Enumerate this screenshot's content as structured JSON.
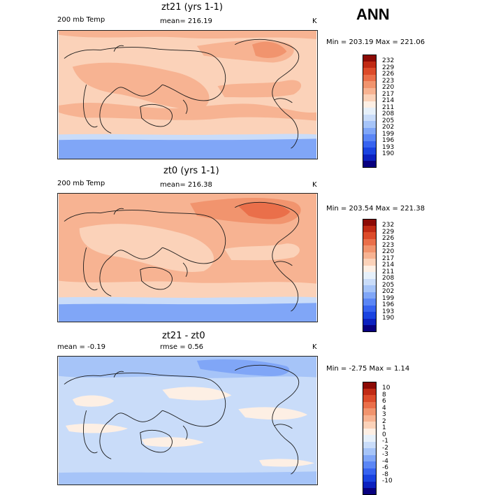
{
  "header": {
    "ann_label": "ANN"
  },
  "panels": [
    {
      "title": "zt21 (yrs 1-1)",
      "left_label": "200 mb Temp",
      "mean_label": "mean= 216.19",
      "unit": "K",
      "minmax": "Min = 203.19 Max = 221.06",
      "colors": [
        "#08007f",
        "#0c21bf",
        "#1a43e0",
        "#3763ef",
        "#5b86f5",
        "#80a6f7",
        "#a6c4f8",
        "#c9dcf9",
        "#e6f0fa",
        "#fdefe4",
        "#fbd2b9",
        "#f7b392",
        "#f1946e",
        "#ea6f4a",
        "#dc4b2a",
        "#c02a14",
        "#8c0a05"
      ],
      "labels": [
        "232",
        "229",
        "226",
        "223",
        "220",
        "217",
        "214",
        "211",
        "208",
        "205",
        "202",
        "199",
        "196",
        "193",
        "190"
      ],
      "bands": [
        {
          "level": 6,
          "color": "#80a6f7"
        },
        {
          "level": 8,
          "color": "#c9dcf9"
        },
        {
          "level": 9,
          "color": "#fdefe4"
        },
        {
          "level": 10,
          "color": "#fbd2b9"
        },
        {
          "level": 11,
          "color": "#f7b392"
        },
        {
          "level": 12,
          "color": "#f1946e"
        },
        {
          "level": 13,
          "color": "#ea6f4a"
        }
      ]
    },
    {
      "title": "zt0 (yrs 1-1)",
      "left_label": "200 mb Temp",
      "mean_label": "mean= 216.38",
      "unit": "K",
      "minmax": "Min = 203.54 Max = 221.38",
      "colors": [
        "#08007f",
        "#0c21bf",
        "#1a43e0",
        "#3763ef",
        "#5b86f5",
        "#80a6f7",
        "#a6c4f8",
        "#c9dcf9",
        "#e6f0fa",
        "#fdefe4",
        "#fbd2b9",
        "#f7b392",
        "#f1946e",
        "#ea6f4a",
        "#dc4b2a",
        "#c02a14",
        "#8c0a05"
      ],
      "labels": [
        "232",
        "229",
        "226",
        "223",
        "220",
        "217",
        "214",
        "211",
        "208",
        "205",
        "202",
        "199",
        "196",
        "193",
        "190"
      ],
      "bands": [
        {
          "level": 6,
          "color": "#80a6f7"
        },
        {
          "level": 8,
          "color": "#c9dcf9"
        },
        {
          "level": 9,
          "color": "#fdefe4"
        },
        {
          "level": 10,
          "color": "#fbd2b9"
        },
        {
          "level": 11,
          "color": "#f7b392"
        },
        {
          "level": 12,
          "color": "#f1946e"
        },
        {
          "level": 13,
          "color": "#ea6f4a"
        }
      ]
    },
    {
      "title": "zt21 - zt0",
      "left_label": "mean =  -0.19",
      "mean_label": "rmse =   0.56",
      "unit": "K",
      "minmax": "Min =  -2.75 Max =   1.14",
      "colors": [
        "#08007f",
        "#0c21bf",
        "#1a43e0",
        "#3763ef",
        "#5b86f5",
        "#80a6f7",
        "#a6c4f8",
        "#c9dcf9",
        "#e6f0fa",
        "#fdefe4",
        "#fbd2b9",
        "#f7b392",
        "#f1946e",
        "#ea6f4a",
        "#dc4b2a",
        "#c02a14",
        "#8c0a05"
      ],
      "labels": [
        "10",
        "8",
        "6",
        "4",
        "3",
        "2",
        "1",
        "0",
        "-1",
        "-2",
        "-3",
        "-4",
        "-6",
        "-8",
        "-10"
      ],
      "bands": [
        {
          "level": 6,
          "color": "#80a6f7"
        },
        {
          "level": 7,
          "color": "#a6c4f8"
        },
        {
          "level": 8,
          "color": "#c9dcf9"
        },
        {
          "level": 9,
          "color": "#fdefe4"
        }
      ]
    }
  ]
}
